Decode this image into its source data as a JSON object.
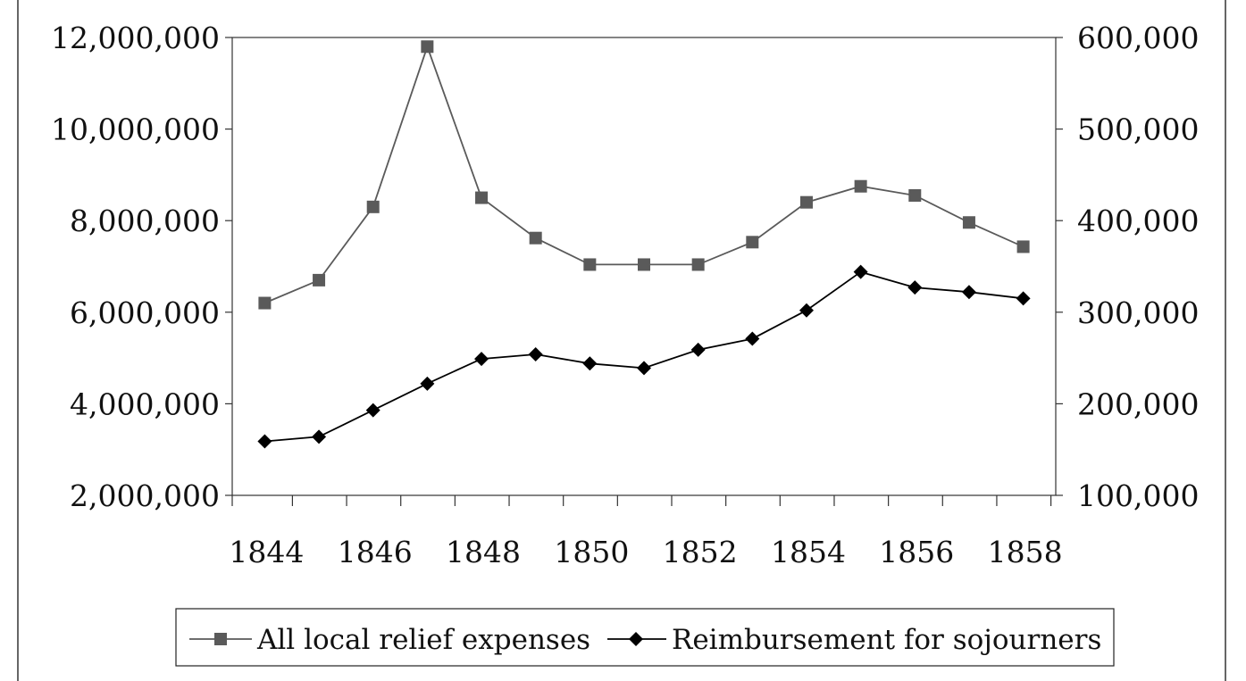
{
  "chart_data": {
    "type": "line",
    "x": [
      1844,
      1845,
      1846,
      1847,
      1848,
      1849,
      1850,
      1851,
      1852,
      1853,
      1854,
      1855,
      1856,
      1857,
      1858
    ],
    "series": [
      {
        "name": "All local relief expenses",
        "axis": "left",
        "marker": "square",
        "color": "#5a5a5a",
        "values": [
          6200000,
          6700000,
          8300000,
          11800000,
          8500000,
          7620000,
          7040000,
          7040000,
          7040000,
          7530000,
          8400000,
          8750000,
          8550000,
          7960000,
          7430000
        ]
      },
      {
        "name": "Reimbursement for sojourners",
        "axis": "right",
        "marker": "diamond",
        "color": "#000000",
        "values": [
          159000,
          164000,
          193000,
          222000,
          249000,
          254000,
          244000,
          239000,
          259000,
          271000,
          302000,
          344000,
          327000,
          322000,
          315000
        ]
      }
    ],
    "x_ticks": [
      "1844",
      "1846",
      "1848",
      "1850",
      "1852",
      "1854",
      "1856",
      "1858"
    ],
    "y_left": {
      "ylim": [
        2000000,
        12000000
      ],
      "ticks": [
        "2,000,000",
        "4,000,000",
        "6,000,000",
        "8,000,000",
        "10,000,000",
        "12,000,000"
      ]
    },
    "y_right": {
      "ylim": [
        100000,
        600000
      ],
      "ticks": [
        "100,000",
        "200,000",
        "300,000",
        "400,000",
        "500,000",
        "600,000"
      ]
    },
    "grid": false,
    "legend_position": "bottom"
  }
}
